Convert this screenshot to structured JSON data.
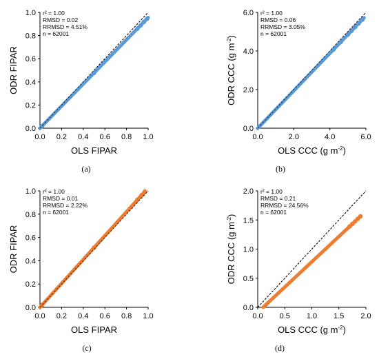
{
  "chart_data": [
    {
      "id": "a",
      "type": "scatter",
      "caption": "(a)",
      "xlabel": "OLS FIPAR",
      "ylabel": "ODR FIPAR",
      "xunit_sup": "",
      "yunit_sup": "",
      "xlim": [
        0,
        1
      ],
      "ylim": [
        0,
        1
      ],
      "xticks": [
        "0.0",
        "0.2",
        "0.4",
        "0.6",
        "0.8",
        "1.0"
      ],
      "yticks": [
        "0.0",
        "0.2",
        "0.4",
        "0.6",
        "0.8",
        "1.0"
      ],
      "marker_color": "#5b9bd5",
      "fit": {
        "slope": 0.955,
        "intercept": 0.0,
        "x_range": [
          0,
          1.0
        ],
        "markers": [
          0.02,
          0.5,
          0.9,
          0.93,
          0.96,
          0.99
        ]
      },
      "stats": {
        "r2": "r² = 1.00",
        "rmsd": "RMSD = 0.02",
        "rrmsd": "RRMSD = 4.51%",
        "n": "n = 62001"
      }
    },
    {
      "id": "b",
      "type": "scatter",
      "caption": "(b)",
      "xlabel": "OLS CCC (g m",
      "ylabel": "ODR CCC (g m",
      "xunit_sup": "-2",
      "yunit_sup": "-2",
      "xlim": [
        0,
        6
      ],
      "ylim": [
        0,
        6
      ],
      "xticks": [
        "0.0",
        "2.0",
        "4.0",
        "6.0"
      ],
      "yticks": [
        "0.0",
        "2.0",
        "4.0",
        "6.0"
      ],
      "marker_color": "#5b9bd5",
      "fit": {
        "slope": 0.97,
        "intercept": 0.0,
        "x_range": [
          0,
          5.9
        ],
        "markers": [
          4.2,
          4.6,
          5.0,
          5.2,
          5.4,
          5.6,
          5.8
        ]
      },
      "stats": {
        "r2": "r² = 1.00",
        "rmsd": "RMSD = 0.06",
        "rrmsd": "RRMSD = 3.05%",
        "n": "n = 62001"
      }
    },
    {
      "id": "c",
      "type": "scatter",
      "caption": "(c)",
      "xlabel": "OLS FIPAR",
      "ylabel": "ODR FIPAR",
      "xunit_sup": "",
      "yunit_sup": "",
      "xlim": [
        0,
        1
      ],
      "ylim": [
        0,
        1
      ],
      "xticks": [
        "0.0",
        "0.2",
        "0.4",
        "0.6",
        "0.8",
        "1.0"
      ],
      "yticks": [
        "0.0",
        "0.2",
        "0.4",
        "0.6",
        "0.8",
        "1.0"
      ],
      "marker_color": "#ed7d31",
      "fit": {
        "slope": 1.025,
        "intercept": 0.0,
        "x_range": [
          0,
          0.97
        ],
        "markers": [
          0.02,
          0.5,
          0.9,
          0.94,
          0.97
        ]
      },
      "stats": {
        "r2": "r² = 1.00",
        "rmsd": "RMSD = 0.01",
        "rrmsd": "RRMSD = 2.22%",
        "n": "n = 62001"
      }
    },
    {
      "id": "d",
      "type": "scatter",
      "caption": "(d)",
      "xlabel": "OLS CCC (g m",
      "ylabel": "ODR CCC (g m",
      "xunit_sup": "-2",
      "yunit_sup": "-2",
      "xlim": [
        0,
        2
      ],
      "ylim": [
        0,
        2
      ],
      "xticks": [
        "0.0",
        "0.5",
        "1.0",
        "1.5",
        "2.0"
      ],
      "yticks": [
        "0.0",
        "0.5",
        "1.0",
        "1.5",
        "2.0"
      ],
      "marker_color": "#ed7d31",
      "fit": {
        "slope": 0.87,
        "intercept": -0.09,
        "x_range": [
          0.1,
          1.9
        ],
        "markers": [
          1.7,
          1.75,
          1.8,
          1.85,
          1.9
        ]
      },
      "stats": {
        "r2": "r² = 1.00",
        "rmsd": "RMSD = 0.21",
        "rrmsd": "RRMSD = 24.56%",
        "n": "n = 62001"
      }
    }
  ]
}
